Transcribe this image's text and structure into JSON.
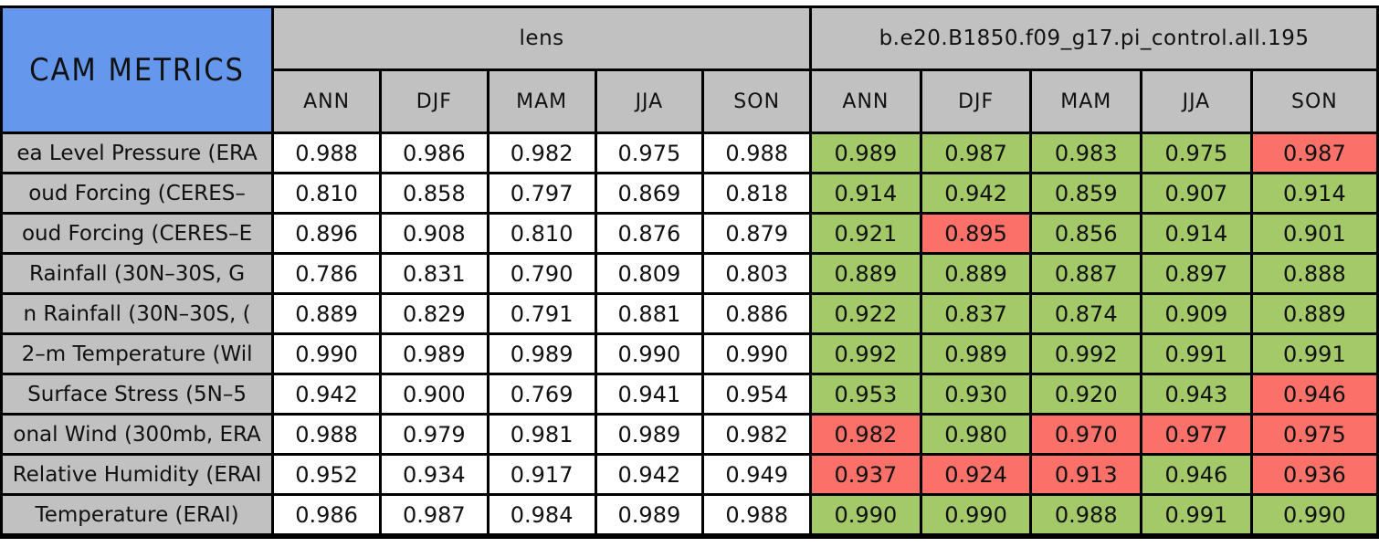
{
  "title": "CAM METRICS",
  "colors": {
    "header_gray": "#c1c1c1",
    "title_blue": "#6598ec",
    "good_green": "#a3c968",
    "bad_red": "#fb7169",
    "border_black": "#000000",
    "plain_cell_white": "#ffffff"
  },
  "groups": {
    "left_label": "lens",
    "right_label": "b.e20.B1850.f09_g17.pi_control.all.195"
  },
  "seasons": [
    "ANN",
    "DJF",
    "MAM",
    "JJA",
    "SON"
  ],
  "rows": [
    {
      "label": "ea Level Pressure (ERA",
      "lens": [
        "0.988",
        "0.986",
        "0.982",
        "0.975",
        "0.988"
      ],
      "control": [
        "0.989",
        "0.987",
        "0.983",
        "0.975",
        "0.987"
      ],
      "flags": [
        "green",
        "green",
        "green",
        "green",
        "red"
      ]
    },
    {
      "label": "oud Forcing (CERES–",
      "lens": [
        "0.810",
        "0.858",
        "0.797",
        "0.869",
        "0.818"
      ],
      "control": [
        "0.914",
        "0.942",
        "0.859",
        "0.907",
        "0.914"
      ],
      "flags": [
        "green",
        "green",
        "green",
        "green",
        "green"
      ]
    },
    {
      "label": "oud Forcing (CERES–E",
      "lens": [
        "0.896",
        "0.908",
        "0.810",
        "0.876",
        "0.879"
      ],
      "control": [
        "0.921",
        "0.895",
        "0.856",
        "0.914",
        "0.901"
      ],
      "flags": [
        "green",
        "red",
        "green",
        "green",
        "green"
      ]
    },
    {
      "label": "Rainfall (30N–30S, G",
      "lens": [
        "0.786",
        "0.831",
        "0.790",
        "0.809",
        "0.803"
      ],
      "control": [
        "0.889",
        "0.889",
        "0.887",
        "0.897",
        "0.888"
      ],
      "flags": [
        "green",
        "green",
        "green",
        "green",
        "green"
      ]
    },
    {
      "label": "n Rainfall (30N–30S, (",
      "lens": [
        "0.889",
        "0.829",
        "0.791",
        "0.881",
        "0.886"
      ],
      "control": [
        "0.922",
        "0.837",
        "0.874",
        "0.909",
        "0.889"
      ],
      "flags": [
        "green",
        "green",
        "green",
        "green",
        "green"
      ]
    },
    {
      "label": "2–m Temperature (Wil",
      "lens": [
        "0.990",
        "0.989",
        "0.989",
        "0.990",
        "0.990"
      ],
      "control": [
        "0.992",
        "0.989",
        "0.992",
        "0.991",
        "0.991"
      ],
      "flags": [
        "green",
        "green",
        "green",
        "green",
        "green"
      ]
    },
    {
      "label": "Surface Stress (5N–5",
      "lens": [
        "0.942",
        "0.900",
        "0.769",
        "0.941",
        "0.954"
      ],
      "control": [
        "0.953",
        "0.930",
        "0.920",
        "0.943",
        "0.946"
      ],
      "flags": [
        "green",
        "green",
        "green",
        "green",
        "red"
      ]
    },
    {
      "label": "onal Wind (300mb, ERA",
      "lens": [
        "0.988",
        "0.979",
        "0.981",
        "0.989",
        "0.982"
      ],
      "control": [
        "0.982",
        "0.980",
        "0.970",
        "0.977",
        "0.975"
      ],
      "flags": [
        "red",
        "green",
        "red",
        "red",
        "red"
      ]
    },
    {
      "label": "Relative Humidity (ERAI",
      "lens": [
        "0.952",
        "0.934",
        "0.917",
        "0.942",
        "0.949"
      ],
      "control": [
        "0.937",
        "0.924",
        "0.913",
        "0.946",
        "0.936"
      ],
      "flags": [
        "red",
        "red",
        "red",
        "green",
        "red"
      ]
    },
    {
      "label": "Temperature (ERAI)",
      "lens": [
        "0.986",
        "0.987",
        "0.984",
        "0.989",
        "0.988"
      ],
      "control": [
        "0.990",
        "0.990",
        "0.988",
        "0.991",
        "0.990"
      ],
      "flags": [
        "green",
        "green",
        "green",
        "green",
        "green"
      ]
    }
  ]
}
